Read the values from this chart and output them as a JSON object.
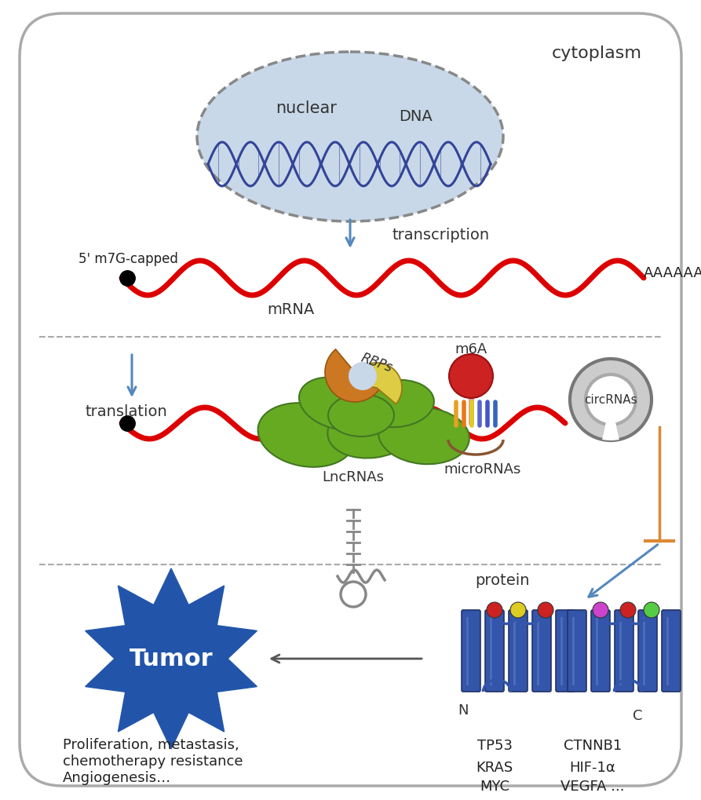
{
  "background_color": "#ffffff",
  "border_color": "#aaaaaa",
  "fig_width": 8.93,
  "fig_height": 10.2,
  "cytoplasm_label": "cytoplasm",
  "nuclear_label": "nuclear",
  "dna_label": "DNA",
  "mrna_label": "mRNA",
  "five_prime_label": "5' m7G-capped",
  "poly_a_label": "AAAAAAAA",
  "transcription_label": "transcription",
  "translation_label": "translation",
  "m6a_label": "m6A",
  "rbps_label": "RBPs",
  "lncrna_label": "LncRNAs",
  "microrna_label": "microRNAs",
  "circrna_label": "circRNAs",
  "protein_label": "protein",
  "n_label": "N",
  "c_label": "C",
  "tumor_label": "Tumor",
  "gene_labels_left": [
    "TP53",
    "KRAS",
    "MYC"
  ],
  "gene_labels_right": [
    "CTNNB1",
    "HIF-1α",
    "VEGFA ..."
  ],
  "effects_text": "Proliferation, metastasis,\nchemotherapy resistance\nAngiogenesis…",
  "mRNA_wave_color": "#dd0000",
  "dna_wave_color": "#334499",
  "arrow_color": "#5588bb",
  "nuclear_fill": "#c8d8e8",
  "nuclear_border": "#888888",
  "green_color": "#66aa22",
  "green_edge": "#447722",
  "orange_color": "#cc7722",
  "yellow_color": "#ddcc44",
  "red_color": "#cc2222",
  "pink_stem": "#dd9999",
  "gray_color": "#888888",
  "protein_blue": "#3355aa",
  "protein_edge": "#223366",
  "tumor_fill": "#2255aa",
  "tumor_text": "#ffffff",
  "sep_color": "#aaaaaa",
  "orange_line": "#dd8833",
  "dark_gray": "#555555"
}
